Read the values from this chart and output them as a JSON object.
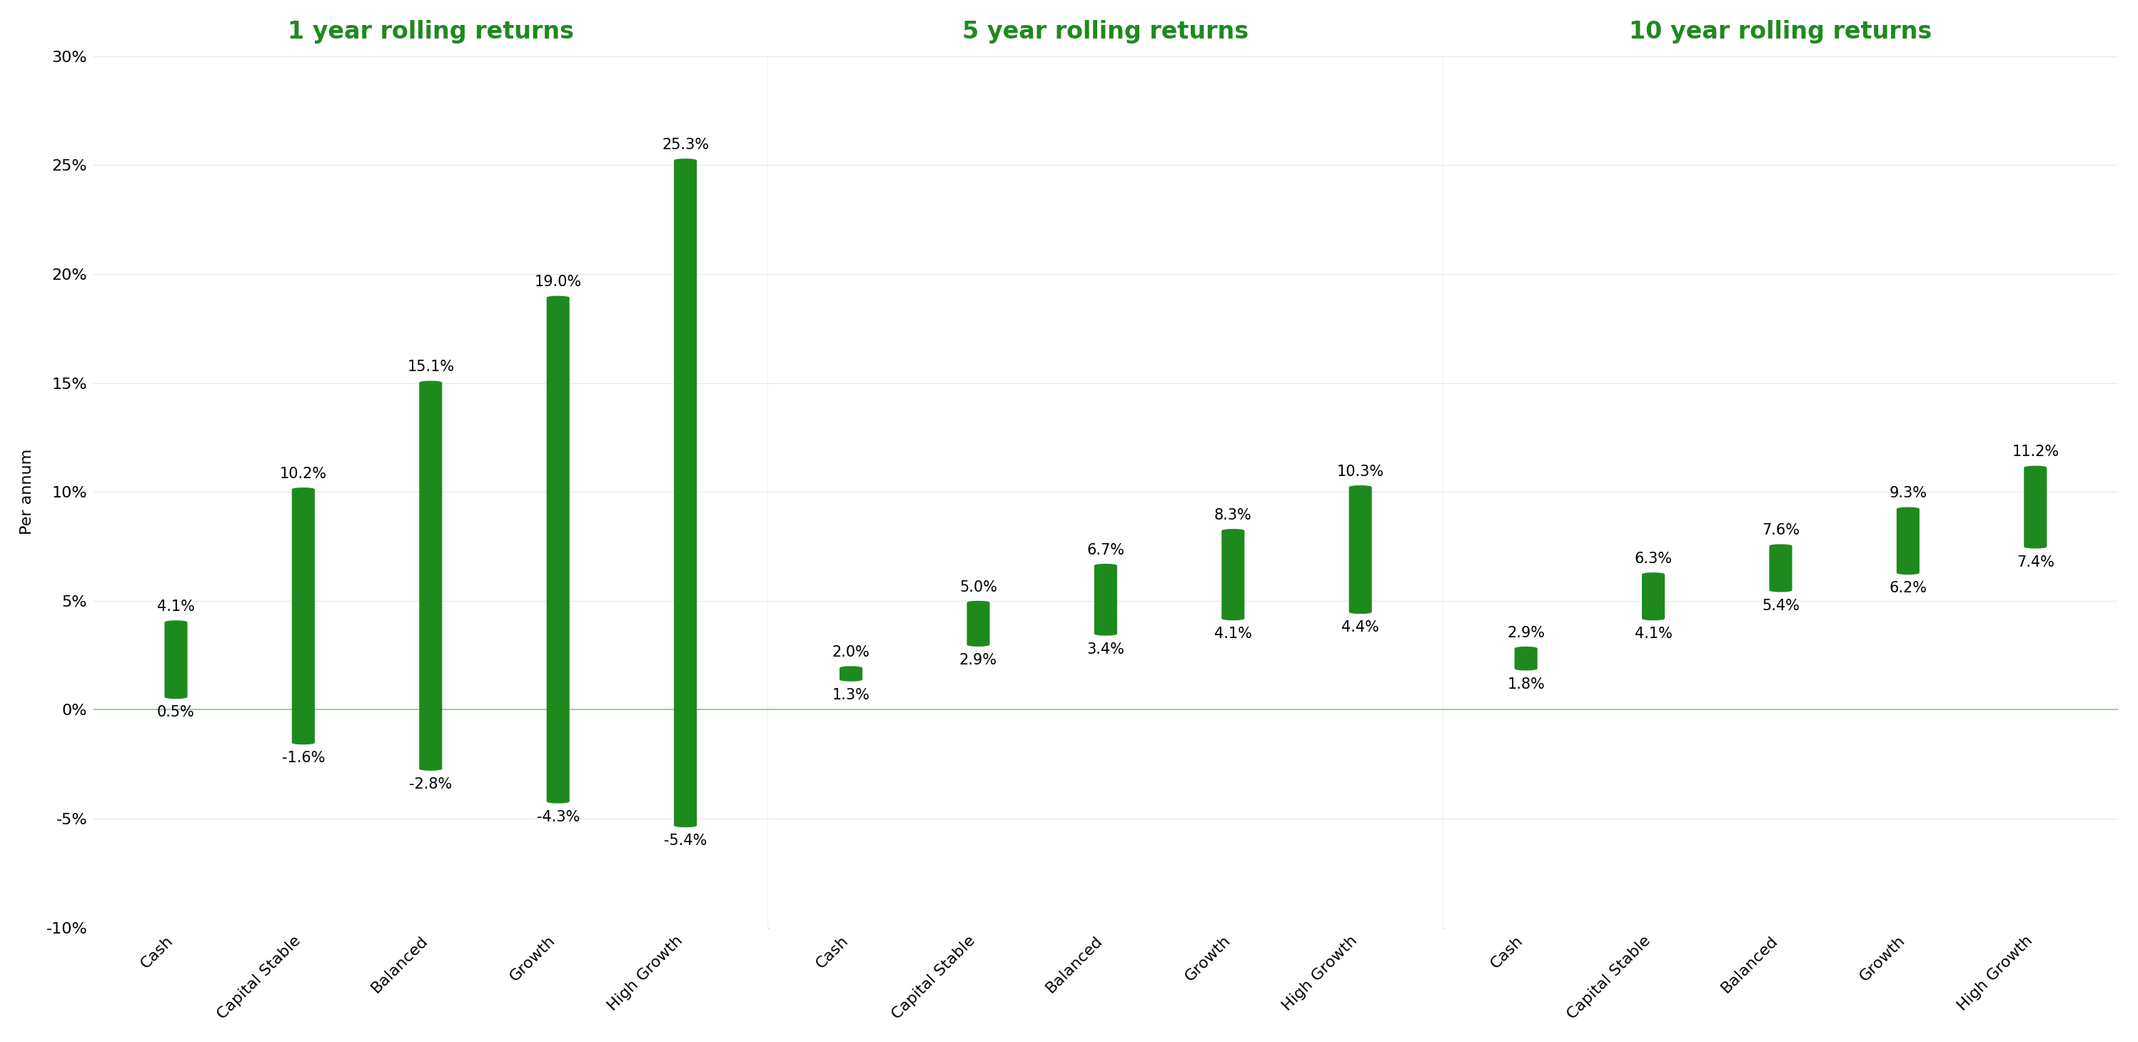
{
  "panels": [
    {
      "title": "1 year rolling returns",
      "categories": [
        "Cash",
        "Capital Stable",
        "Balanced",
        "Growth",
        "High Growth"
      ],
      "min_vals": [
        0.5,
        -1.6,
        -2.8,
        -4.3,
        -5.4
      ],
      "max_vals": [
        4.1,
        10.2,
        15.1,
        19.0,
        25.3
      ]
    },
    {
      "title": "5 year rolling returns",
      "categories": [
        "Cash",
        "Capital Stable",
        "Balanced",
        "Growth",
        "High Growth"
      ],
      "min_vals": [
        1.3,
        2.9,
        3.4,
        4.1,
        4.4
      ],
      "max_vals": [
        2.0,
        5.0,
        6.7,
        8.3,
        10.3
      ]
    },
    {
      "title": "10 year rolling returns",
      "categories": [
        "Cash",
        "Capital Stable",
        "Balanced",
        "Growth",
        "High Growth"
      ],
      "min_vals": [
        1.8,
        4.1,
        5.4,
        6.2,
        7.4
      ],
      "max_vals": [
        2.9,
        6.3,
        7.6,
        9.3,
        11.2
      ]
    }
  ],
  "ylabel": "Per annum",
  "ylim": [
    -10,
    30
  ],
  "yticks": [
    -10,
    -5,
    0,
    5,
    10,
    15,
    20,
    25,
    30
  ],
  "ytick_labels": [
    "-10%",
    "-5%",
    "0%",
    "5%",
    "10%",
    "15%",
    "20%",
    "25%",
    "30%"
  ],
  "bar_color": "#1e8a1e",
  "title_color": "#1e8a1e",
  "zero_line_color": "#90d890",
  "grid_color": "#e8e8e8",
  "bar_width": 0.18,
  "background_color": "#ffffff",
  "title_fontsize": 24,
  "label_fontsize": 16,
  "tick_fontsize": 16,
  "annotation_fontsize": 15
}
